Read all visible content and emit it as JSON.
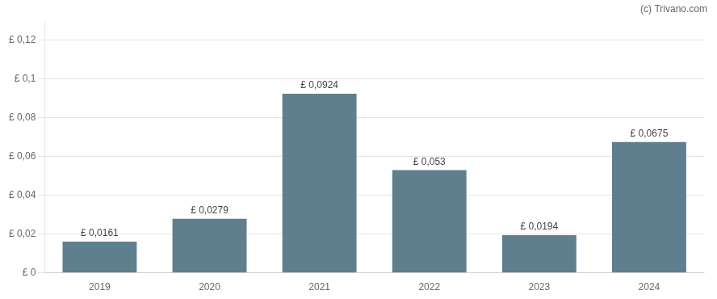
{
  "chart_data": {
    "type": "bar",
    "annotations": [
      "(c) Trivano.com"
    ],
    "categories": [
      "2019",
      "2020",
      "2021",
      "2022",
      "2023",
      "2024"
    ],
    "values": [
      0.0161,
      0.0279,
      0.0924,
      0.053,
      0.0194,
      0.0675
    ],
    "value_labels": [
      "£ 0,0161",
      "£ 0,0279",
      "£ 0,0924",
      "£ 0,053",
      "£ 0,0194",
      "£ 0,0675"
    ],
    "data_labels": true,
    "color": "#5f7f8f",
    "ylim": [
      0,
      0.13
    ],
    "yticks": [
      {
        "value": 0,
        "label": "£ 0"
      },
      {
        "value": 0.02,
        "label": "£ 0,02"
      },
      {
        "value": 0.04,
        "label": "£ 0,04"
      },
      {
        "value": 0.06,
        "label": "£ 0,06"
      },
      {
        "value": 0.08,
        "label": "£ 0,08"
      },
      {
        "value": 0.1,
        "label": "£ 0,1"
      },
      {
        "value": 0.12,
        "label": "£ 0,12"
      }
    ],
    "grid": true
  }
}
